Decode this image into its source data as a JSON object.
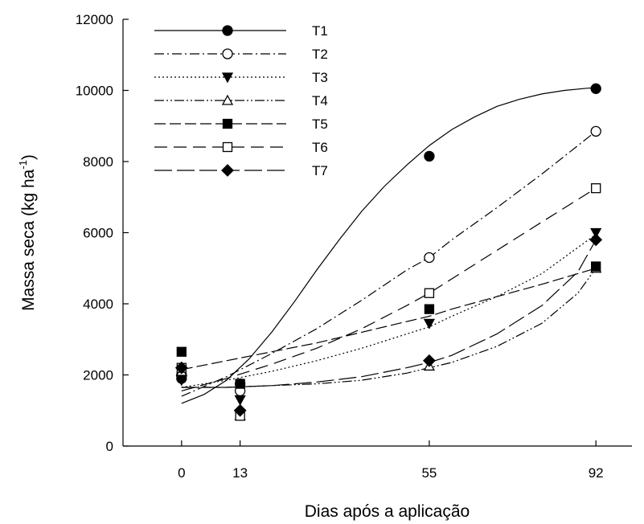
{
  "chart_data": {
    "type": "scatter",
    "xlabel": "Dias após a aplicação",
    "ylabel_main": "Massa seca (kg ha",
    "ylabel_sup": "-1",
    "ylabel_end": ")",
    "xlim": [
      -13,
      100
    ],
    "ylim": [
      0,
      12000
    ],
    "xticks": [
      0,
      13,
      55,
      92
    ],
    "yticks": [
      0,
      2000,
      4000,
      6000,
      8000,
      10000,
      12000
    ],
    "grid": false,
    "legend": "top-left",
    "series": [
      {
        "name": "T1",
        "marker": "circle-filled",
        "dash": "",
        "points": [
          [
            0,
            1900
          ],
          [
            13,
            1750
          ],
          [
            55,
            8150
          ],
          [
            92,
            10050
          ]
        ],
        "curve": [
          [
            0,
            1200
          ],
          [
            5,
            1450
          ],
          [
            10,
            1850
          ],
          [
            15,
            2450
          ],
          [
            20,
            3200
          ],
          [
            25,
            4050
          ],
          [
            30,
            4950
          ],
          [
            35,
            5800
          ],
          [
            40,
            6600
          ],
          [
            45,
            7300
          ],
          [
            50,
            7900
          ],
          [
            55,
            8450
          ],
          [
            60,
            8900
          ],
          [
            65,
            9250
          ],
          [
            70,
            9550
          ],
          [
            75,
            9750
          ],
          [
            80,
            9900
          ],
          [
            85,
            10000
          ],
          [
            90,
            10060
          ],
          [
            92,
            10080
          ]
        ]
      },
      {
        "name": "T2",
        "marker": "circle-open",
        "dash": "12,4,2,4",
        "points": [
          [
            0,
            2000
          ],
          [
            13,
            1550
          ],
          [
            55,
            5300
          ],
          [
            92,
            8850
          ]
        ],
        "curve": [
          [
            0,
            1400
          ],
          [
            10,
            1950
          ],
          [
            20,
            2600
          ],
          [
            30,
            3300
          ],
          [
            40,
            4100
          ],
          [
            50,
            4950
          ],
          [
            55,
            5300
          ],
          [
            60,
            5800
          ],
          [
            70,
            6700
          ],
          [
            80,
            7650
          ],
          [
            92,
            8850
          ]
        ]
      },
      {
        "name": "T3",
        "marker": "triangle-down-filled",
        "dash": "2,3",
        "points": [
          [
            0,
            1850
          ],
          [
            13,
            1300
          ],
          [
            55,
            3450
          ],
          [
            92,
            6000
          ]
        ],
        "curve": [
          [
            0,
            1650
          ],
          [
            10,
            1850
          ],
          [
            20,
            2100
          ],
          [
            30,
            2400
          ],
          [
            40,
            2750
          ],
          [
            50,
            3150
          ],
          [
            55,
            3350
          ],
          [
            60,
            3650
          ],
          [
            70,
            4200
          ],
          [
            80,
            4850
          ],
          [
            92,
            5950
          ]
        ]
      },
      {
        "name": "T4",
        "marker": "triangle-up-open",
        "dash": "12,3,2,3,2,3",
        "points": [
          [
            0,
            2100
          ],
          [
            13,
            850
          ],
          [
            55,
            2250
          ],
          [
            92,
            5000
          ]
        ],
        "curve": [
          [
            0,
            1650
          ],
          [
            10,
            1650
          ],
          [
            20,
            1700
          ],
          [
            30,
            1750
          ],
          [
            40,
            1850
          ],
          [
            50,
            2050
          ],
          [
            55,
            2200
          ],
          [
            60,
            2350
          ],
          [
            70,
            2800
          ],
          [
            80,
            3450
          ],
          [
            88,
            4300
          ],
          [
            92,
            5000
          ]
        ]
      },
      {
        "name": "T5",
        "marker": "square-filled",
        "dash": "14,5",
        "points": [
          [
            0,
            2650
          ],
          [
            13,
            1750
          ],
          [
            55,
            3850
          ],
          [
            92,
            5050
          ]
        ],
        "curve": [
          [
            0,
            2150
          ],
          [
            10,
            2400
          ],
          [
            20,
            2650
          ],
          [
            30,
            2900
          ],
          [
            40,
            3200
          ],
          [
            50,
            3500
          ],
          [
            55,
            3650
          ],
          [
            60,
            3850
          ],
          [
            70,
            4200
          ],
          [
            80,
            4550
          ],
          [
            92,
            5000
          ]
        ]
      },
      {
        "name": "T6",
        "marker": "square-open",
        "dash": "16,8",
        "points": [
          [
            0,
            2200
          ],
          [
            13,
            850
          ],
          [
            55,
            4300
          ],
          [
            92,
            7250
          ]
        ],
        "curve": [
          [
            0,
            1550
          ],
          [
            10,
            1900
          ],
          [
            20,
            2300
          ],
          [
            30,
            2750
          ],
          [
            40,
            3300
          ],
          [
            50,
            3950
          ],
          [
            55,
            4300
          ],
          [
            60,
            4700
          ],
          [
            70,
            5500
          ],
          [
            80,
            6300
          ],
          [
            92,
            7250
          ]
        ]
      },
      {
        "name": "T7",
        "marker": "diamond-filled",
        "dash": "22,6",
        "points": [
          [
            0,
            2200
          ],
          [
            13,
            1000
          ],
          [
            55,
            2400
          ],
          [
            92,
            5800
          ]
        ],
        "curve": [
          [
            0,
            1650
          ],
          [
            10,
            1650
          ],
          [
            20,
            1700
          ],
          [
            30,
            1800
          ],
          [
            40,
            1950
          ],
          [
            50,
            2200
          ],
          [
            55,
            2350
          ],
          [
            60,
            2550
          ],
          [
            70,
            3150
          ],
          [
            80,
            3950
          ],
          [
            88,
            4900
          ],
          [
            92,
            5800
          ]
        ]
      }
    ]
  }
}
